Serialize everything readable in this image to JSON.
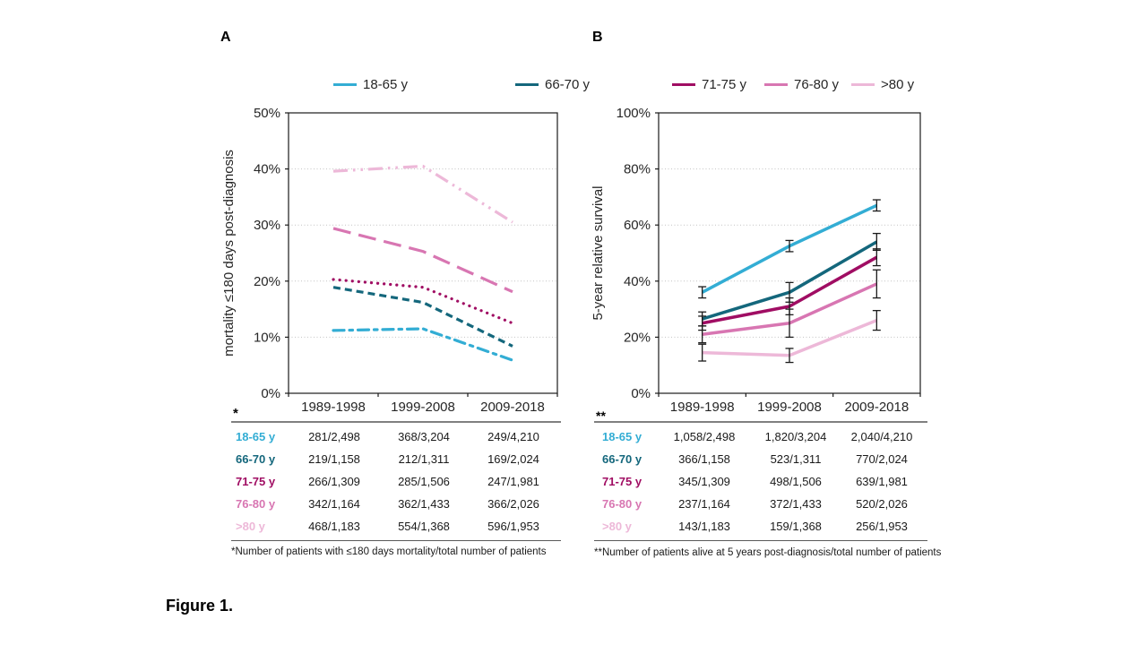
{
  "figure": {
    "panel_a_label": "A",
    "panel_b_label": "B",
    "caption": "Figure 1."
  },
  "colors": {
    "age_18_65": "#33ADD4",
    "age_66_70": "#14677C",
    "age_71_75": "#A00D63",
    "age_76_80": "#D876B2",
    "age_over_80": "#EDB8D8",
    "grid": "#C2C2C2",
    "axis": "#1a1a1a",
    "rule_top": "#808080",
    "rule_bottom": "#595959"
  },
  "legend": {
    "items": [
      {
        "label": "18-65 y",
        "color": "#33ADD4"
      },
      {
        "label": "66-70 y",
        "color": "#14677C"
      },
      {
        "label": "71-75 y",
        "color": "#A00D63"
      },
      {
        "label": "76-80 y",
        "color": "#D876B2"
      },
      {
        "label": ">80 y",
        "color": "#EDB8D8"
      }
    ]
  },
  "chart_data": [
    {
      "id": "panel-a",
      "type": "line",
      "title": "",
      "xlabel": "",
      "ylabel": "mortality ≤180 days post-diagnosis",
      "categories": [
        "1989-1998",
        "1999-2008",
        "2009-2018"
      ],
      "ylim": [
        0,
        50
      ],
      "ytick_step": 10,
      "ytick_format": "percent",
      "grid": true,
      "legend_position": "top-shared",
      "series": [
        {
          "name": "18-65 y",
          "color": "#33ADD4",
          "line_style": "dash-dot",
          "values": [
            11.2,
            11.5,
            5.9
          ]
        },
        {
          "name": "66-70 y",
          "color": "#14677C",
          "line_style": "dash",
          "values": [
            18.9,
            16.2,
            8.4
          ]
        },
        {
          "name": "71-75 y",
          "color": "#A00D63",
          "line_style": "dot",
          "values": [
            20.3,
            18.9,
            12.5
          ]
        },
        {
          "name": "76-80 y",
          "color": "#D876B2",
          "line_style": "long-dash",
          "values": [
            29.4,
            25.3,
            18.1
          ]
        },
        {
          "name": ">80 y",
          "color": "#EDB8D8",
          "line_style": "long-dash-dot-dot",
          "values": [
            39.6,
            40.5,
            30.5
          ]
        }
      ]
    },
    {
      "id": "panel-b",
      "type": "line",
      "title": "",
      "xlabel": "",
      "ylabel": "5-year relative survival",
      "categories": [
        "1989-1998",
        "1999-2008",
        "2009-2018"
      ],
      "ylim": [
        0,
        100
      ],
      "ytick_step": 20,
      "ytick_format": "percent",
      "grid": true,
      "legend_position": "top-shared",
      "error_bars": true,
      "series": [
        {
          "name": "18-65 y",
          "color": "#33ADD4",
          "line_style": "solid",
          "values": [
            36,
            52.5,
            67
          ],
          "errors": [
            2,
            2,
            2
          ]
        },
        {
          "name": "66-70 y",
          "color": "#14677C",
          "line_style": "solid",
          "values": [
            26.5,
            36,
            54
          ],
          "errors": [
            2.5,
            3.5,
            3
          ]
        },
        {
          "name": "71-75 y",
          "color": "#A00D63",
          "line_style": "solid",
          "values": [
            25,
            31,
            48.5
          ],
          "errors": [
            2.5,
            3,
            3
          ]
        },
        {
          "name": "76-80 y",
          "color": "#D876B2",
          "line_style": "solid",
          "values": [
            21,
            25,
            39
          ],
          "errors": [
            3,
            5,
            5
          ]
        },
        {
          "name": ">80 y",
          "color": "#EDB8D8",
          "line_style": "solid",
          "values": [
            14.5,
            13.5,
            26
          ],
          "errors": [
            3,
            2.5,
            3.5
          ]
        }
      ]
    }
  ],
  "table_a": {
    "marker": "*",
    "columns": [
      "1989-1998",
      "1999-2008",
      "2009-2018"
    ],
    "rows": [
      {
        "label": "18-65 y",
        "color": "#33ADD4",
        "values": [
          "281/2,498",
          "368/3,204",
          "249/4,210"
        ]
      },
      {
        "label": "66-70 y",
        "color": "#14677C",
        "values": [
          "219/1,158",
          "212/1,311",
          "169/2,024"
        ]
      },
      {
        "label": "71-75 y",
        "color": "#A00D63",
        "values": [
          "266/1,309",
          "285/1,506",
          "247/1,981"
        ]
      },
      {
        "label": "76-80 y",
        "color": "#D876B2",
        "values": [
          "342/1,164",
          "362/1,433",
          "366/2,026"
        ]
      },
      {
        "label": ">80 y",
        "color": "#EDB8D8",
        "values": [
          "468/1,183",
          "554/1,368",
          "596/1,953"
        ]
      }
    ],
    "footnote": "*Number of patients with ≤180 days mortality/total number of patients"
  },
  "table_b": {
    "marker": "**",
    "columns": [
      "1989-1998",
      "1999-2008",
      "2009-2018"
    ],
    "rows": [
      {
        "label": "18-65 y",
        "color": "#33ADD4",
        "values": [
          "1,058/2,498",
          "1,820/3,204",
          "2,040/4,210"
        ]
      },
      {
        "label": "66-70 y",
        "color": "#14677C",
        "values": [
          "366/1,158",
          "523/1,311",
          "770/2,024"
        ]
      },
      {
        "label": "71-75 y",
        "color": "#A00D63",
        "values": [
          "345/1,309",
          "498/1,506",
          "639/1,981"
        ]
      },
      {
        "label": "76-80 y",
        "color": "#D876B2",
        "values": [
          "237/1,164",
          "372/1,433",
          "520/2,026"
        ]
      },
      {
        "label": ">80 y",
        "color": "#EDB8D8",
        "values": [
          "143/1,183",
          "159/1,368",
          "256/1,953"
        ]
      }
    ],
    "footnote": "**Number of patients alive at 5 years post-diagnosis/total number of patients"
  }
}
